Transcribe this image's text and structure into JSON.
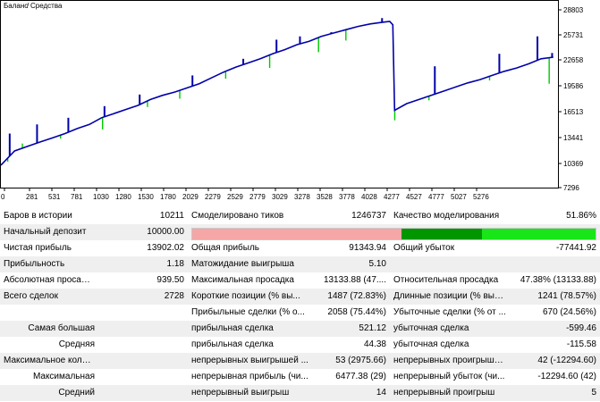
{
  "chart_data": {
    "type": "line",
    "series": [
      {
        "name": "Баланс",
        "color": "#0000aa"
      },
      {
        "name": "Средства",
        "color": "#00c800"
      }
    ],
    "x_ticks": [
      "0",
      "281",
      "531",
      "781",
      "1030",
      "1280",
      "1530",
      "1780",
      "2029",
      "2279",
      "2529",
      "2779",
      "3029",
      "3278",
      "3528",
      "3778",
      "4028",
      "4277",
      "4527",
      "4777",
      "5027",
      "5276"
    ],
    "y_ticks": [
      "28803",
      "25731",
      "22658",
      "19586",
      "16513",
      "13441",
      "10369",
      "7296"
    ],
    "ylim": [
      7296,
      28803
    ],
    "x": [
      0,
      140,
      281,
      406,
      531,
      656,
      781,
      906,
      1030,
      1155,
      1280,
      1405,
      1530,
      1655,
      1780,
      1905,
      2029,
      2154,
      2279,
      2404,
      2529,
      2654,
      2779,
      2904,
      3029,
      3154,
      3278,
      3403,
      3528,
      3653,
      3778,
      3903,
      3978,
      4010,
      4028,
      4152,
      4277,
      4402,
      4527,
      4652,
      4777,
      4902,
      5027,
      5152,
      5276,
      5402,
      5527,
      5652
    ],
    "balance": [
      10000,
      11700,
      12300,
      12800,
      13300,
      13800,
      14400,
      14900,
      15700,
      16200,
      16700,
      17200,
      17900,
      18400,
      18800,
      19300,
      19800,
      20500,
      21200,
      21800,
      22300,
      22800,
      23400,
      23900,
      24500,
      24900,
      25500,
      25900,
      26300,
      26700,
      27000,
      27200,
      27300,
      26900,
      16600,
      17400,
      17900,
      18400,
      18900,
      19400,
      19900,
      20300,
      20800,
      21300,
      21700,
      22200,
      22800,
      23000
    ],
    "spikes": [
      {
        "x": 90,
        "y": 13800
      },
      {
        "x": 370,
        "y": 14900
      },
      {
        "x": 690,
        "y": 15700
      },
      {
        "x": 1060,
        "y": 17100
      },
      {
        "x": 1420,
        "y": 18500
      },
      {
        "x": 1960,
        "y": 20800
      },
      {
        "x": 2480,
        "y": 22800
      },
      {
        "x": 2820,
        "y": 25100
      },
      {
        "x": 3060,
        "y": 25500
      },
      {
        "x": 3380,
        "y": 26000
      },
      {
        "x": 3900,
        "y": 27700
      },
      {
        "x": 4440,
        "y": 21900
      },
      {
        "x": 5100,
        "y": 23400
      },
      {
        "x": 5490,
        "y": 25500
      },
      {
        "x": 5640,
        "y": 23500
      }
    ],
    "dips": [
      {
        "x": 70,
        "y": 10400
      },
      {
        "x": 220,
        "y": 12600
      },
      {
        "x": 610,
        "y": 13200
      },
      {
        "x": 1040,
        "y": 14300
      },
      {
        "x": 1500,
        "y": 17000
      },
      {
        "x": 1830,
        "y": 18000
      },
      {
        "x": 2300,
        "y": 20400
      },
      {
        "x": 2750,
        "y": 21700
      },
      {
        "x": 3250,
        "y": 23600
      },
      {
        "x": 3530,
        "y": 25000
      },
      {
        "x": 4030,
        "y": 15400
      },
      {
        "x": 4380,
        "y": 17800
      },
      {
        "x": 5000,
        "y": 20200
      },
      {
        "x": 5610,
        "y": 19800
      }
    ]
  },
  "report": {
    "rows": [
      [
        "Баров в истории",
        "10211",
        "Смоделировано тиков",
        "1246737",
        "Качество моделирования",
        "51.86%"
      ],
      [
        "Начальный депозит",
        "10000.00",
        "",
        "",
        "",
        ""
      ],
      [
        "Чистая прибыль",
        "13902.02",
        "Общая прибыль",
        "91343.94",
        "Общий убыток",
        "-77441.92"
      ],
      [
        "Прибыльность",
        "1.18",
        "Матожидание выигрыша",
        "5.10",
        "",
        ""
      ],
      [
        "Абсолютная просадка",
        "939.50",
        "Максимальная просадка",
        "13133.88 (47....",
        "Относительная просадка",
        "47.38% (13133.88)"
      ],
      [
        "Всего сделок",
        "2728",
        "Короткие позиции (% вы...",
        "1487 (72.83%)",
        "Длинные позиции (% выи...",
        "1241 (78.57%)"
      ],
      [
        "",
        "",
        "Прибыльные сделки (% о...",
        "2058 (75.44%)",
        "Убыточные сделки (% от ...",
        "670 (24.56%)"
      ],
      [
        "Самая большая",
        "",
        "прибыльная сделка",
        "521.12",
        "убыточная сделка",
        "-599.46"
      ],
      [
        "Средняя",
        "",
        "прибыльная сделка",
        "44.38",
        "убыточная сделка",
        "-115.58"
      ],
      [
        "Максимальное количество",
        "",
        "непрерывных выигрышей ...",
        "53 (2975.66)",
        "непрерывных проигрыше...",
        "42 (-12294.60)"
      ],
      [
        "Максимальная",
        "",
        "непрерывная прибыль (чи...",
        "6477.38 (29)",
        "непрерывный убыток (чи...",
        "-12294.60 (42)"
      ],
      [
        "Средний",
        "",
        "непрерывный выигрыш",
        "14",
        "непрерывный проигрыш",
        "5"
      ]
    ],
    "quality_bar": [
      {
        "fraction": 0.5186,
        "color": "#f5a6a6"
      },
      {
        "fraction": 0.2,
        "color": "#009600"
      },
      {
        "fraction": 0.2814,
        "color": "#19e619"
      }
    ]
  }
}
